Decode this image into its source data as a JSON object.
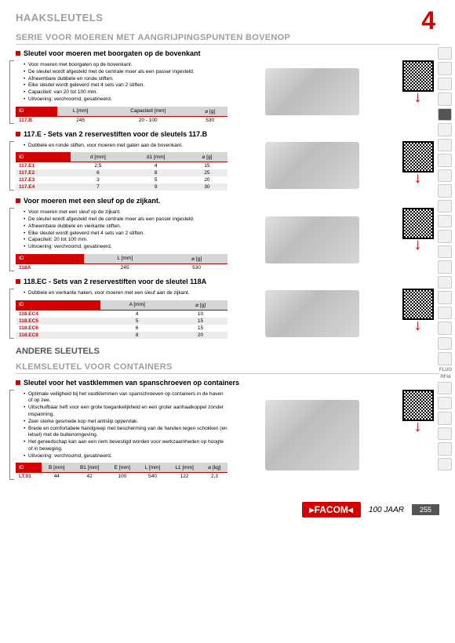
{
  "page_number": "255",
  "chapter": "4",
  "main_heading": "HAAKSLEUTELS",
  "subheading1": "SERIE VOOR MOEREN MET AANGRIJPINGSPUNTEN BOVENOP",
  "andere_title": "ANDERE SLEUTELS",
  "klem_title": "KLEMSLEUTEL VOOR CONTAINERS",
  "footer_brand": "FACOM",
  "footer_years": "100 JAAR",
  "sidebar_labels": [
    "FLUO",
    "RFid"
  ],
  "s1": {
    "title": "Sleutel voor moeren met boorgaten op de bovenkant",
    "bullets": [
      "Voor moeren met boorgaten op de bovenkant.",
      "De sleutel wordt afgesteld met de centrale moer als een passer ingesteld.",
      "Afneembare dubbele en ronde stiften.",
      "Elke sleutel wordt geleverd met 4 sets van 2 stiften.",
      "Capaciteit: van 20 tot 100 mm.",
      "Uitvoering: verchroomd, gesatineerd."
    ],
    "headers": [
      "ID",
      "L [mm]",
      "Capaciteit [mm]",
      "⌀ [g]"
    ],
    "rows": [
      [
        "117.B",
        "245",
        "20 - 100",
        "530"
      ]
    ]
  },
  "s2": {
    "title": "117.E - Sets van 2 reservestiften voor de sleutels 117.B",
    "bullets": [
      "Dubbele en ronde stiften, voor moeren met gaten aan de bovenkant."
    ],
    "headers": [
      "ID",
      "d [mm]",
      "d1 [mm]",
      "⌀ [g]"
    ],
    "rows": [
      [
        "117.E1",
        "2,5",
        "4",
        "15"
      ],
      [
        "117.E2",
        "6",
        "8",
        "25"
      ],
      [
        "117.E3",
        "3",
        "5",
        "20"
      ],
      [
        "117.E4",
        "7",
        "9",
        "30"
      ]
    ]
  },
  "s3": {
    "title": "Voor moeren met een sleuf op de zijkant.",
    "bullets": [
      "Voor moeren met een sleuf op de zijkant.",
      "De sleutel wordt afgesteld met de centrale moer als een passer ingesteld.",
      "Afneembare dubbele en vierkante stiften.",
      "Elke sleutel wordt geleverd met 4 sets van 2 stiften.",
      "Capaciteit: 20 tot 100 mm.",
      "Uitvoering: verchroomd, gesatineerd."
    ],
    "headers": [
      "ID",
      "L [mm]",
      "⌀ [g]"
    ],
    "rows": [
      [
        "118A",
        "245",
        "530"
      ]
    ]
  },
  "s4": {
    "title": "118.EC - Sets van 2 reservestiften voor de sleutel 118A",
    "bullets": [
      "Dubbele en vierkante haken, voor moeren met een sleuf aan de zijkant."
    ],
    "headers": [
      "ID",
      "A [mm]",
      "⌀ [g]"
    ],
    "rows": [
      [
        "118.EC4",
        "4",
        "10"
      ],
      [
        "118.EC5",
        "5",
        "15"
      ],
      [
        "118.EC6",
        "6",
        "15"
      ],
      [
        "118.EC8",
        "8",
        "20"
      ]
    ]
  },
  "s5": {
    "title": "Sleutel voor het vastklemmen van spanschroeven op containers",
    "bullets": [
      "Optimale veiligheid bij het vastklemmen van spanschroeven op containers in de haven of op zee.",
      "Uitschuifbaar heft voor een grote toegankelijkheid en een groter aanhaalkoppel zonder inspanning.",
      "Zeer sterke gesmede kop met antislip oppervlak.",
      "Brede en comfortabele handgreep met bescherming van de handen tegen schokken (en letsel) met de buitenomgeving.",
      "Het gereedschap kan aan een riem bevestigd worden voor werkzaamheden op hoogte of in beweging.",
      "Uitvoering: verchroomd, gesatineerd."
    ],
    "headers": [
      "ID",
      "B [mm]",
      "B1 [mm]",
      "E [mm]",
      "L [mm]",
      "L1 [mm]",
      "⌀ [kg]"
    ],
    "rows": [
      [
        "LT.01",
        "44",
        "42",
        "100",
        "540",
        "122",
        "2,3"
      ]
    ]
  }
}
